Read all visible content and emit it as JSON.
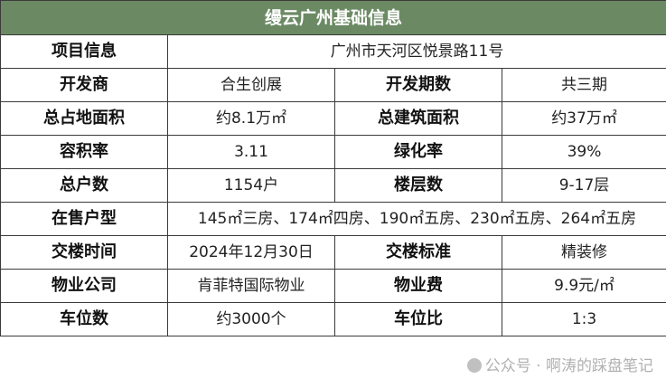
{
  "title": "缦云广州基础信息",
  "project": {
    "label": "项目信息",
    "value": "广州市天河区悦景路11号"
  },
  "rows": [
    {
      "l1": "开发商",
      "v1": "合生创展",
      "l2": "开发期数",
      "v2": "共三期"
    },
    {
      "l1": "总占地面积",
      "v1": "约8.1万㎡",
      "l2": "总建筑面积",
      "v2": "约37万㎡"
    },
    {
      "l1": "容积率",
      "v1": "3.11",
      "l2": "绿化率",
      "v2": "39%"
    },
    {
      "l1": "总户数",
      "v1": "1154户",
      "l2": "楼层数",
      "v2": "9-17层"
    }
  ],
  "units": {
    "label": "在售户型",
    "value": "145㎡三房、174㎡四房、190㎡五房、230㎡五房、264㎡五房"
  },
  "rows2": [
    {
      "l1": "交楼时间",
      "v1": "2024年12月30日",
      "l2": "交楼标准",
      "v2": "精装修"
    },
    {
      "l1": "物业公司",
      "v1": "肯菲特国际物业",
      "l2": "物业费",
      "v2": "9.9元/㎡"
    },
    {
      "l1": "车位数",
      "v1": "约3000个",
      "l2": "车位比",
      "v2": "1:3"
    }
  ],
  "watermark": "公众号 · 啊涛的踩盘笔记",
  "colors": {
    "header_bg": "#6b8a64"
  }
}
